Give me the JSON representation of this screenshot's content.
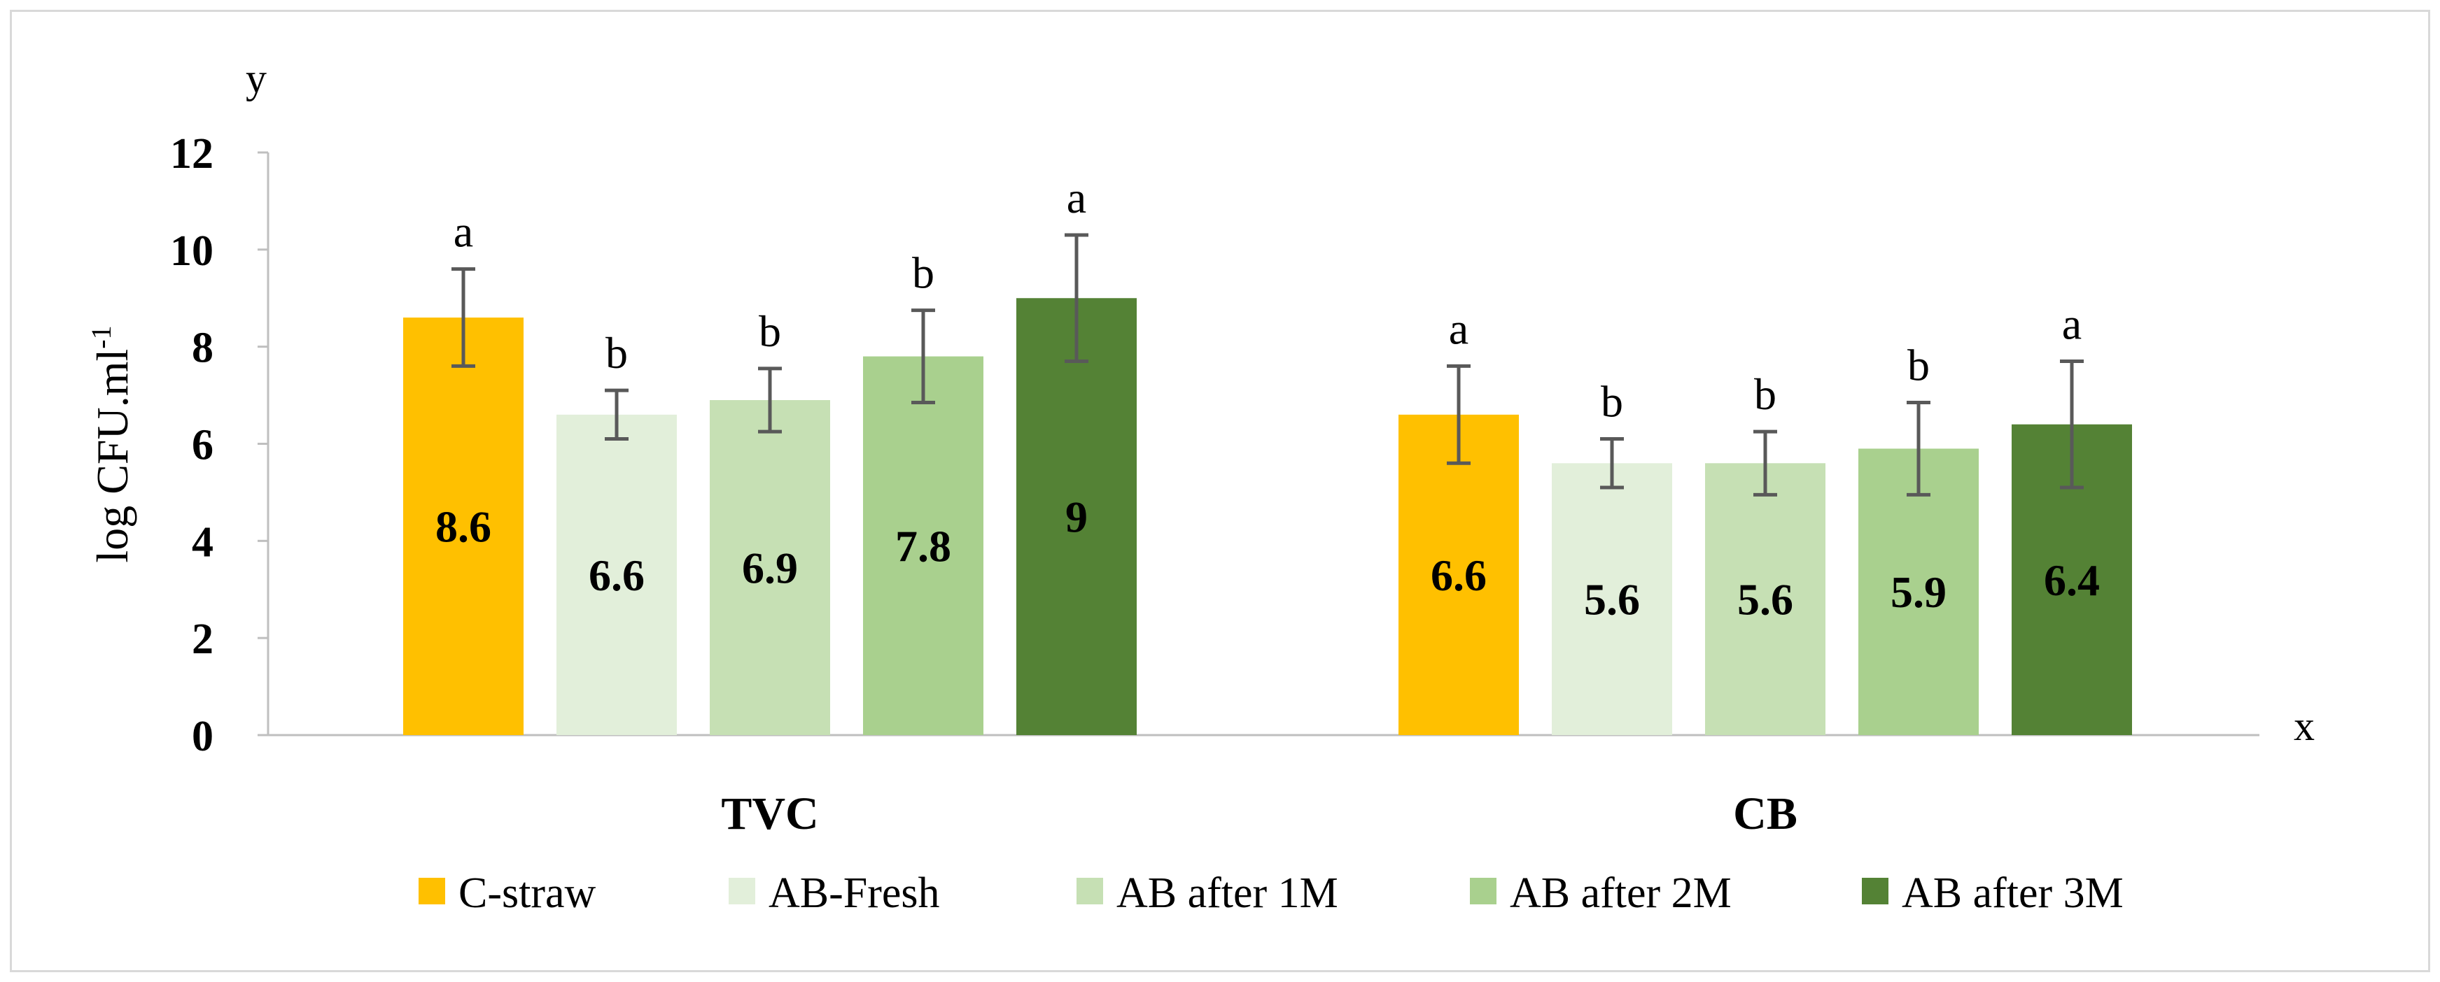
{
  "chart_data": {
    "type": "bar",
    "categories": [
      "TVC",
      "CB"
    ],
    "series": [
      {
        "name": "C-straw",
        "color": "#FFC000",
        "values": [
          8.6,
          6.6
        ],
        "errors": [
          1.0,
          1.0
        ],
        "letters": [
          "a",
          "a"
        ]
      },
      {
        "name": "AB-Fresh",
        "color": "#E2EFDA",
        "values": [
          6.6,
          5.6
        ],
        "errors": [
          0.5,
          0.5
        ],
        "letters": [
          "b",
          "b"
        ]
      },
      {
        "name": "AB after 1M",
        "color": "#C6E0B4",
        "values": [
          6.9,
          5.6
        ],
        "errors": [
          0.65,
          0.65
        ],
        "letters": [
          "b",
          "b"
        ]
      },
      {
        "name": "AB after 2M",
        "color": "#A9D08E",
        "values": [
          7.8,
          5.9
        ],
        "errors": [
          0.95,
          0.95
        ],
        "letters": [
          "b",
          "b"
        ]
      },
      {
        "name": "AB after 3M",
        "color": "#548235",
        "values": [
          9,
          6.4
        ],
        "errors": [
          1.3,
          1.3
        ],
        "letters": [
          "a",
          "a"
        ]
      }
    ],
    "value_labels": [
      [
        "8.6",
        "6.6"
      ],
      [
        "6.6",
        "5.6"
      ],
      [
        "6.9",
        "5.6"
      ],
      [
        "7.8",
        "5.9"
      ],
      [
        "9",
        "6.4"
      ]
    ],
    "ylabel_main": "log CFU.ml",
    "ylabel_sup": "-1",
    "y_axis_letter": "y",
    "x_axis_letter": "x",
    "ylim": [
      0,
      12
    ],
    "yticks": [
      "0",
      "2",
      "4",
      "6",
      "8",
      "10",
      "12"
    ],
    "grid": false,
    "legend_position": "bottom"
  }
}
